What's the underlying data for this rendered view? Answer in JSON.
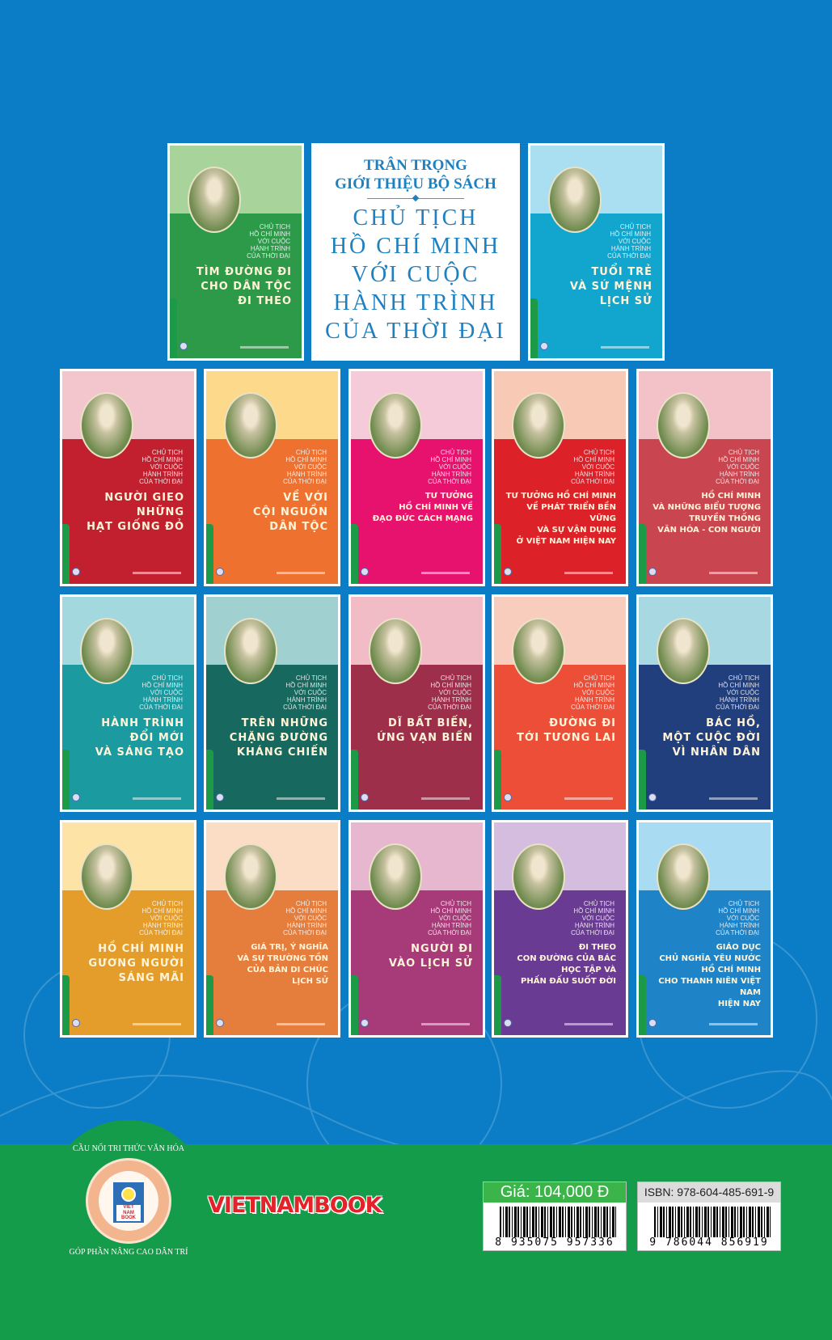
{
  "intro_box": {
    "intro": "TRÂN TRỌNG\nGIỚI THIỆU BỘ SÁCH",
    "series_title": "CHỦ TỊCH\nHỒ CHÍ MINH\nVỚI CUỘC\nHÀNH TRÌNH\nCỦA THỜI ĐẠI"
  },
  "series_label": "CHỦ TỊCH\nHỒ CHÍ MINH\nVỚI CUỘC\nHÀNH TRÌNH\nCỦA THỜI ĐẠI",
  "books_top": [
    {
      "title": "TÌM ĐƯỜNG ĐI\nCHO DÂN TỘC\nĐI THEO",
      "top_color": "#a8d39a",
      "color": "#2d9a4a"
    },
    {
      "title": "TUỔI TRẺ\nVÀ SỨ MỆNH\nLỊCH SỬ",
      "top_color": "#a9dff0",
      "color": "#12a6cf"
    }
  ],
  "books_grid": [
    {
      "title": "NGƯỜI GIEO\nNHỮNG\nHẠT GIỐNG ĐỎ",
      "top_color": "#f3c5cd",
      "color": "#c2202f"
    },
    {
      "title": "VỀ VỚI\nCỘI NGUỒN\nDÂN TỘC",
      "top_color": "#fcd98b",
      "color": "#ef7130"
    },
    {
      "title": "TƯ TƯỞNG\nHỒ CHÍ MINH VỀ\nĐẠO ĐỨC CÁCH MẠNG",
      "top_color": "#f6cbd9",
      "color": "#e6126d"
    },
    {
      "title": "TƯ TƯỞNG HỒ CHÍ MINH\nVỀ PHÁT TRIỂN BỀN VỮNG\nVÀ SỰ VẬN DỤNG\nỞ VIỆT NAM HIỆN NAY",
      "top_color": "#f8c9b5",
      "color": "#dc2128"
    },
    {
      "title": "HỒ CHÍ MINH\nVÀ NHỮNG BIỂU TƯỢNG\nTRUYỀN THỐNG\nVĂN HÓA - CON NGƯỜI",
      "top_color": "#f3c1c8",
      "color": "#c9454f"
    },
    {
      "title": "HÀNH TRÌNH\nĐỔI MỚI\nVÀ SÁNG TẠO",
      "top_color": "#a3d8de",
      "color": "#1b9aa0"
    },
    {
      "title": "TRÊN NHỮNG\nCHẶNG ĐƯỜNG\nKHÁNG CHIẾN",
      "top_color": "#a0d0cf",
      "color": "#17685e"
    },
    {
      "title": "DĨ BẤT BIẾN,\nỨNG VẠN BIẾN",
      "top_color": "#f1bcc5",
      "color": "#9d2f4b"
    },
    {
      "title": "ĐƯỜNG ĐI\nTỚI TƯƠNG LAI",
      "top_color": "#f9cdbd",
      "color": "#ec4e37"
    },
    {
      "title": "BÁC HỒ,\nMỘT CUỘC ĐỜI\nVÌ NHÂN DÂN",
      "top_color": "#a8d8e2",
      "color": "#223f7d"
    },
    {
      "title": "HỒ CHÍ MINH\nGƯƠNG NGƯỜI\nSÁNG MÃI",
      "top_color": "#fde3a6",
      "color": "#e49c2a"
    },
    {
      "title": "GIÁ TRỊ, Ý NGHĨA\nVÀ SỰ TRƯỜNG TỒN\nCỦA BẢN DI CHÚC\nLỊCH SỬ",
      "top_color": "#fbdcc5",
      "color": "#e57d3c"
    },
    {
      "title": "NGƯỜI ĐI\nVÀO LỊCH SỬ",
      "top_color": "#e7b7cf",
      "color": "#a73a78"
    },
    {
      "title": "ĐI THEO\nCON ĐƯỜNG CỦA BÁC\nHỌC TẬP VÀ\nPHẤN ĐẤU SUỐT ĐỜI",
      "top_color": "#d5bddf",
      "color": "#6a3b93"
    },
    {
      "title": "GIÁO DỤC\nCHỦ NGHĨA YÊU NƯỚC\nHỒ CHÍ MINH\nCHO THANH NIÊN VIỆT NAM\nHIỆN NAY",
      "top_color": "#a9dcf3",
      "color": "#1f83c7"
    }
  ],
  "publisher": {
    "logo_text_top": "CẦU NỐI TRI THỨC VĂN HÓA",
    "logo_text_bottom": "GÓP PHẦN NÂNG CAO DÂN TRÍ",
    "logo_sign": "VIET\nNAM\nBOOK",
    "brand": "VIETNAMBOOK"
  },
  "price": {
    "label": "Giá: 104,000 Đ",
    "barcode": "8 935075 957336"
  },
  "isbn": {
    "label": "ISBN: 978-604-485-691-9",
    "barcode": "9 786044 856919"
  },
  "colors": {
    "background": "#0a7dc6",
    "band": "#149c4a",
    "brand": "#e3222a"
  }
}
